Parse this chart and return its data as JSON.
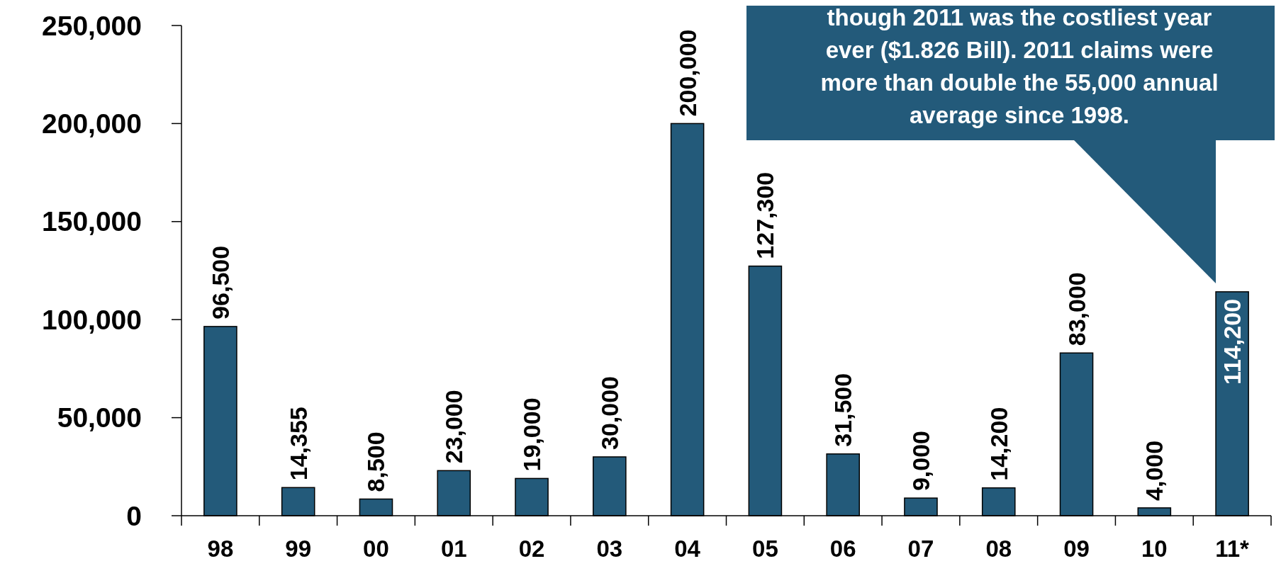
{
  "chart_data": {
    "type": "bar",
    "categories": [
      "98",
      "99",
      "00",
      "01",
      "02",
      "03",
      "04",
      "05",
      "06",
      "07",
      "08",
      "09",
      "10",
      "11*"
    ],
    "values": [
      96500,
      14355,
      8500,
      23000,
      19000,
      30000,
      200000,
      127300,
      31500,
      9000,
      14200,
      83000,
      4000,
      114200
    ],
    "color": "#235a7a",
    "value_labels": [
      "96,500",
      "14,355",
      "8,500",
      "23,000",
      "19,000",
      "30,000",
      "200,000",
      "127,300",
      "31,500",
      "9,000",
      "14,200",
      "83,000",
      "4,000",
      "114,200"
    ],
    "ylim": [
      0,
      250000
    ],
    "yticks": [
      {
        "value": 0,
        "label": "0"
      },
      {
        "value": 50000,
        "label": "50,000"
      },
      {
        "value": 100000,
        "label": "100,000"
      },
      {
        "value": 150000,
        "label": "150,000"
      },
      {
        "value": 200000,
        "label": "200,000"
      },
      {
        "value": 250000,
        "label": "250,000"
      }
    ],
    "grid": false,
    "annotations": [
      "though 2011 was the costliest year ever ($1.826 Bill).  2011 claims were more than double the 55,000 annual average since 1998."
    ]
  }
}
